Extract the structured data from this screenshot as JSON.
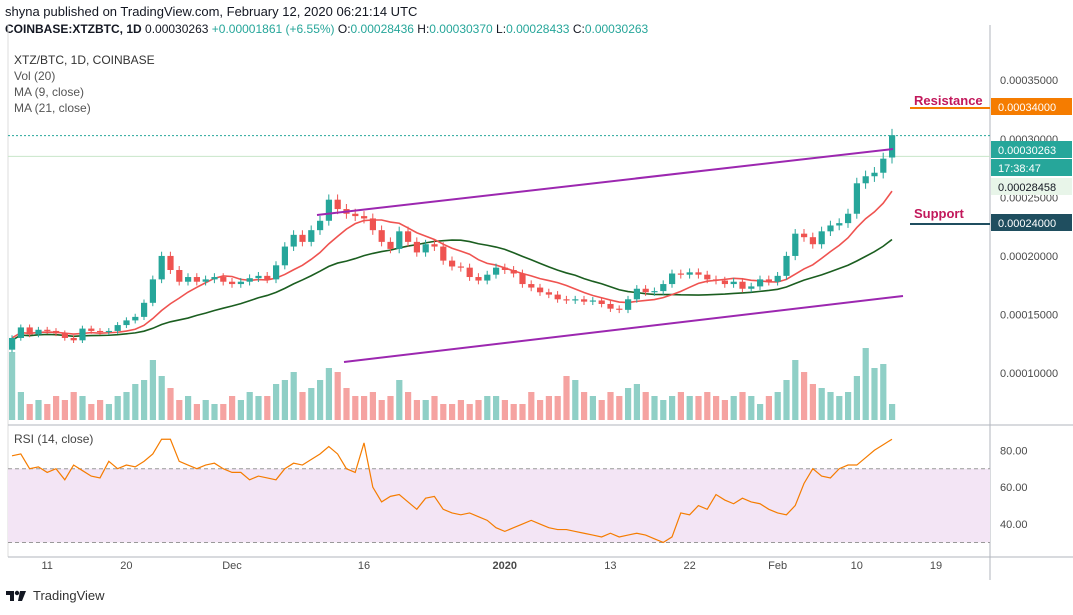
{
  "header": {
    "published": "shyna published on TradingView.com, February 12, 2020 06:21:14 UTC",
    "symbol": "COINBASE:XTZBTC, 1D",
    "price": "0.00030263",
    "change": "+0.00001861 (+6.55%)",
    "o_label": "O:",
    "o": "0.00028436",
    "h_label": "H:",
    "h": "0.00030370",
    "l_label": "L:",
    "l": "0.00028433",
    "c_label": "C:",
    "c": "0.00030263"
  },
  "legend": {
    "title": "XTZ/BTC, 1D, COINBASE",
    "vol": "Vol (20)",
    "ma9": "MA (9, close)",
    "ma21": "MA (21, close)",
    "rsi": "RSI (14, close)"
  },
  "annotations": {
    "resistance": "Resistance",
    "support": "Support"
  },
  "price_badges": {
    "resistance": "0.00034000",
    "current": "0.00030263",
    "countdown": "17:38:47",
    "ma_value": "0.00028458",
    "support": "0.00024000"
  },
  "footer": {
    "brand": "TradingView"
  },
  "colors": {
    "up": "#26a69a",
    "down": "#ef5350",
    "ma9": "#ef5350",
    "ma21": "#1b5e20",
    "trend": "#9c27b0",
    "resistance": "#f57c00",
    "support": "#1f4e5f",
    "rsi_line": "#f57c00",
    "rsi_band": "#f3e5f5",
    "label_magenta": "#c2185b"
  },
  "chart_data": {
    "type": "candlestick",
    "y_axis": {
      "range": [
        6e-05,
        0.00038
      ],
      "ticks": [
        "0.00010000",
        "0.00015000",
        "0.00020000",
        "0.00025000",
        "0.00030000",
        "0.00035000"
      ],
      "tick_values": [
        0.0001,
        0.00015,
        0.0002,
        0.00025,
        0.0003,
        0.00035
      ]
    },
    "x_axis": {
      "tick_labels": [
        "11",
        "20",
        "Dec",
        "16",
        "2020",
        "13",
        "22",
        "Feb",
        "10",
        "19"
      ],
      "tick_bar_index": [
        4,
        13,
        25,
        40,
        56,
        68,
        77,
        87,
        96,
        105
      ]
    },
    "rsi_axis": {
      "range": [
        27,
        91
      ],
      "ticks": [
        "40.00",
        "60.00",
        "80.00"
      ],
      "tick_values": [
        40,
        60,
        80
      ],
      "band": [
        30,
        70
      ]
    },
    "close": [
      0.00013,
      0.000139,
      0.000133,
      0.000137,
      0.000136,
      0.000134,
      0.00013,
      0.000128,
      0.000138,
      0.000136,
      0.000135,
      0.000136,
      0.000141,
      0.000145,
      0.000148,
      0.00016,
      0.00018,
      0.0002,
      0.000188,
      0.000178,
      0.000182,
      0.000178,
      0.00018,
      0.000182,
      0.000178,
      0.000176,
      0.000178,
      0.000181,
      0.000183,
      0.00018,
      0.000192,
      0.000208,
      0.000218,
      0.000212,
      0.000222,
      0.00023,
      0.000248,
      0.00024,
      0.000236,
      0.000234,
      0.000232,
      0.000222,
      0.000212,
      0.000206,
      0.000221,
      0.000212,
      0.000203,
      0.00021,
      0.000208,
      0.000196,
      0.000191,
      0.00019,
      0.000182,
      0.000179,
      0.000184,
      0.00019,
      0.000188,
      0.000185,
      0.000176,
      0.000173,
      0.000169,
      0.000167,
      0.000163,
      0.000162,
      0.000163,
      0.000161,
      0.000162,
      0.000159,
      0.000155,
      0.000154,
      0.000163,
      0.000172,
      0.000169,
      0.00017,
      0.000176,
      0.000185,
      0.000184,
      0.000186,
      0.000184,
      0.00018,
      0.000179,
      0.000176,
      0.000178,
      0.000172,
      0.000174,
      0.00018,
      0.000178,
      0.000183,
      0.0002,
      0.000219,
      0.000216,
      0.00021,
      0.000221,
      0.000226,
      0.000228,
      0.000236,
      0.000262,
      0.000268,
      0.000271,
      0.000283,
      0.000303
    ],
    "open": [
      0.00012,
      0.00013,
      0.000139,
      0.000133,
      0.000137,
      0.000136,
      0.000134,
      0.00013,
      0.000128,
      0.000138,
      0.000136,
      0.000135,
      0.000136,
      0.000141,
      0.000145,
      0.000148,
      0.00016,
      0.00018,
      0.0002,
      0.000188,
      0.000178,
      0.000182,
      0.000178,
      0.00018,
      0.000182,
      0.000178,
      0.000176,
      0.000178,
      0.000181,
      0.000183,
      0.00018,
      0.000192,
      0.000208,
      0.000218,
      0.000212,
      0.000222,
      0.00023,
      0.000248,
      0.00024,
      0.000236,
      0.000234,
      0.000232,
      0.000222,
      0.000212,
      0.000206,
      0.000221,
      0.000212,
      0.000203,
      0.00021,
      0.000208,
      0.000196,
      0.000191,
      0.00019,
      0.000182,
      0.000179,
      0.000184,
      0.00019,
      0.000188,
      0.000185,
      0.000176,
      0.000173,
      0.000169,
      0.000167,
      0.000163,
      0.000162,
      0.000163,
      0.000161,
      0.000162,
      0.000159,
      0.000155,
      0.000154,
      0.000163,
      0.000172,
      0.000169,
      0.00017,
      0.000176,
      0.000185,
      0.000184,
      0.000186,
      0.000184,
      0.00018,
      0.000179,
      0.000176,
      0.000178,
      0.000172,
      0.000174,
      0.00018,
      0.000178,
      0.000183,
      0.0002,
      0.000219,
      0.000216,
      0.00021,
      0.000221,
      0.000226,
      0.000228,
      0.000236,
      0.000262,
      0.000268,
      0.000271,
      0.000284
    ],
    "volume_rel": [
      0.85,
      0.35,
      0.2,
      0.25,
      0.2,
      0.3,
      0.25,
      0.35,
      0.3,
      0.2,
      0.25,
      0.2,
      0.3,
      0.35,
      0.45,
      0.5,
      0.75,
      0.55,
      0.4,
      0.25,
      0.3,
      0.2,
      0.25,
      0.2,
      0.2,
      0.3,
      0.25,
      0.35,
      0.3,
      0.3,
      0.45,
      0.5,
      0.6,
      0.35,
      0.4,
      0.5,
      0.65,
      0.6,
      0.4,
      0.3,
      0.3,
      0.35,
      0.25,
      0.3,
      0.5,
      0.35,
      0.25,
      0.25,
      0.3,
      0.2,
      0.2,
      0.25,
      0.2,
      0.25,
      0.3,
      0.3,
      0.25,
      0.2,
      0.2,
      0.35,
      0.25,
      0.3,
      0.3,
      0.55,
      0.5,
      0.35,
      0.3,
      0.25,
      0.35,
      0.3,
      0.4,
      0.45,
      0.35,
      0.3,
      0.25,
      0.3,
      0.35,
      0.3,
      0.3,
      0.35,
      0.3,
      0.25,
      0.3,
      0.35,
      0.3,
      0.2,
      0.3,
      0.35,
      0.5,
      0.75,
      0.6,
      0.45,
      0.4,
      0.35,
      0.3,
      0.35,
      0.55,
      0.9,
      0.65,
      0.7,
      0.2
    ],
    "rsi": [
      77,
      78,
      70,
      71,
      68,
      70,
      64,
      72,
      69,
      66,
      65,
      74,
      70,
      72,
      71,
      74,
      78,
      86,
      86,
      74,
      72,
      70,
      72,
      73,
      70,
      68,
      68,
      64,
      66,
      65,
      64,
      70,
      73,
      72,
      75,
      78,
      82,
      78,
      70,
      68,
      84,
      60,
      52,
      55,
      56,
      52,
      48,
      54,
      55,
      48,
      46,
      45,
      46,
      44,
      42,
      38,
      36,
      38,
      40,
      42,
      40,
      38,
      37,
      37,
      36,
      35,
      34,
      33,
      35,
      33,
      34,
      35,
      34,
      32,
      30,
      33,
      46,
      45,
      50,
      48,
      56,
      53,
      51,
      54,
      52,
      51,
      48,
      46,
      45,
      50,
      62,
      70,
      66,
      65,
      70,
      72,
      72,
      76,
      80,
      83,
      86
    ]
  }
}
